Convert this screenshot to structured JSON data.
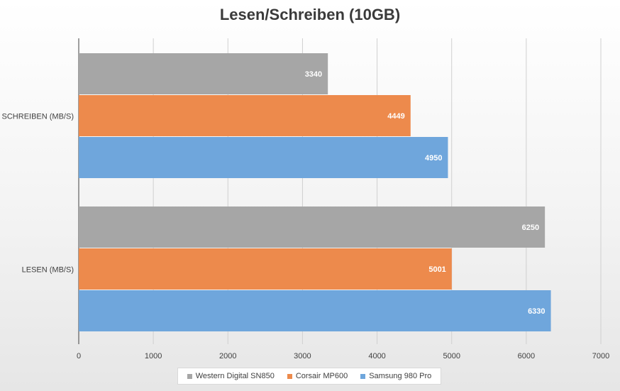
{
  "chart_data": {
    "type": "bar",
    "orientation": "horizontal",
    "title": "Lesen/Schreiben (10GB)",
    "categories": [
      "SCHREIBEN (MB/S)",
      "LESEN (MB/S)"
    ],
    "series": [
      {
        "name": "Western Digital SN850",
        "color": "#a6a6a6",
        "values": [
          3340,
          6250
        ]
      },
      {
        "name": "Corsair MP600",
        "color": "#ed8a4c",
        "values": [
          4449,
          5001
        ]
      },
      {
        "name": "Samsung 980 Pro",
        "color": "#6fa6dc",
        "values": [
          4950,
          6330
        ]
      }
    ],
    "xlim": [
      0,
      7000
    ],
    "xticks": [
      0,
      1000,
      2000,
      3000,
      4000,
      5000,
      6000,
      7000
    ],
    "grid": true,
    "data_labels": true,
    "legend_position": "bottom"
  }
}
